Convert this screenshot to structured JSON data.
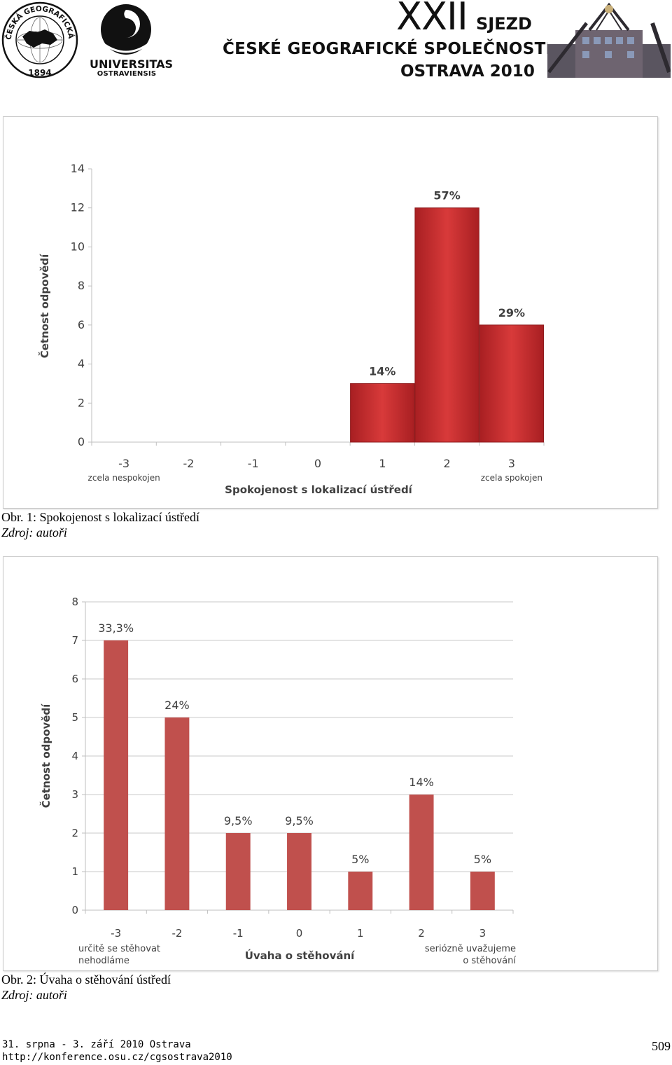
{
  "header": {
    "seal_ring_text": "ČESKÁ GEOGRAFICKÁ SPOLEČNOST",
    "seal_year": "1894",
    "university_name": "UNIVERSITAS",
    "university_sub": "OSTRAVIENSIS",
    "congress_number": "XXII",
    "congress_word": "SJEZD",
    "society_name": "ČESKÉ GEOGRAFICKÉ SPOLEČNOSTI",
    "city_year": "OSTRAVA 2010"
  },
  "figures": [
    {
      "caption": "Obr. 1: Spokojenost s lokalizací ústředí",
      "source": "Zdroj: autoři"
    },
    {
      "caption": "Obr. 2: Úvaha o stěhování ústředí",
      "source": "Zdroj: autoři"
    }
  ],
  "chart_data": [
    {
      "type": "bar",
      "title": "",
      "xlabel": "Spokojenost s lokalizací ústředí",
      "ylabel": "Četnost odpovědí",
      "categories": [
        "-3",
        "-2",
        "-1",
        "0",
        "1",
        "2",
        "3"
      ],
      "category_sublabels": {
        "-3": "zcela nespokojen",
        "3": "zcela spokojen"
      },
      "values": [
        0,
        0,
        0,
        0,
        3,
        12,
        6
      ],
      "data_labels": [
        "",
        "",
        "",
        "",
        "14%",
        "57%",
        "29%"
      ],
      "ylim": [
        0,
        14
      ],
      "yticks": [
        0,
        2,
        4,
        6,
        8,
        10,
        12,
        14
      ],
      "grid": false,
      "bar_color": "#c0292b"
    },
    {
      "type": "bar",
      "title": "",
      "xlabel": "Úvaha o stěhování",
      "ylabel": "Četnost odpovědí",
      "categories": [
        "-3",
        "-2",
        "-1",
        "0",
        "1",
        "2",
        "3"
      ],
      "category_sublabels": {
        "-3": [
          "určitě se stěhovat",
          "nehodláme"
        ],
        "3": [
          "seriózně uvažujeme",
          "o stěhování"
        ]
      },
      "values": [
        7,
        5,
        2,
        2,
        1,
        3,
        1
      ],
      "data_labels": [
        "33,3%",
        "24%",
        "9,5%",
        "9,5%",
        "5%",
        "14%",
        "5%"
      ],
      "ylim": [
        0,
        8
      ],
      "yticks": [
        0,
        1,
        2,
        3,
        4,
        5,
        6,
        7,
        8
      ],
      "grid": true,
      "bar_color": "#c0504d"
    }
  ],
  "footer": {
    "date": "31. srpna - 3. září 2010 Ostrava",
    "url": "http://konference.osu.cz/cgsostrava2010",
    "page_number": "509"
  }
}
